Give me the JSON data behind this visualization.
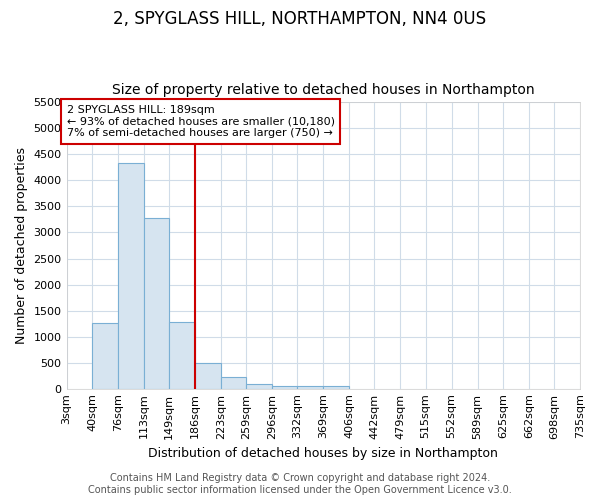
{
  "title": "2, SPYGLASS HILL, NORTHAMPTON, NN4 0US",
  "subtitle": "Size of property relative to detached houses in Northampton",
  "xlabel": "Distribution of detached houses by size in Northampton",
  "ylabel": "Number of detached properties",
  "bin_edges": [
    3,
    40,
    76,
    113,
    149,
    186,
    223,
    259,
    296,
    332,
    369,
    406,
    442,
    479,
    515,
    552,
    589,
    625,
    662,
    698,
    735
  ],
  "bin_counts": [
    0,
    1270,
    4330,
    3280,
    1290,
    490,
    230,
    90,
    60,
    50,
    55,
    0,
    0,
    0,
    0,
    0,
    0,
    0,
    0,
    0
  ],
  "bar_facecolor": "#d6e4f0",
  "bar_edgecolor": "#7aafd4",
  "vline_x": 186,
  "vline_color": "#cc0000",
  "ylim": [
    0,
    5500
  ],
  "yticks": [
    0,
    500,
    1000,
    1500,
    2000,
    2500,
    3000,
    3500,
    4000,
    4500,
    5000,
    5500
  ],
  "annotation_text": "2 SPYGLASS HILL: 189sqm\n← 93% of detached houses are smaller (10,180)\n7% of semi-detached houses are larger (750) →",
  "annotation_box_color": "#cc0000",
  "footer_text": "Contains HM Land Registry data © Crown copyright and database right 2024.\nContains public sector information licensed under the Open Government Licence v3.0.",
  "background_color": "#ffffff",
  "grid_color": "#d0dce8",
  "title_fontsize": 12,
  "subtitle_fontsize": 10,
  "axis_label_fontsize": 9,
  "tick_fontsize": 8,
  "footer_fontsize": 7
}
